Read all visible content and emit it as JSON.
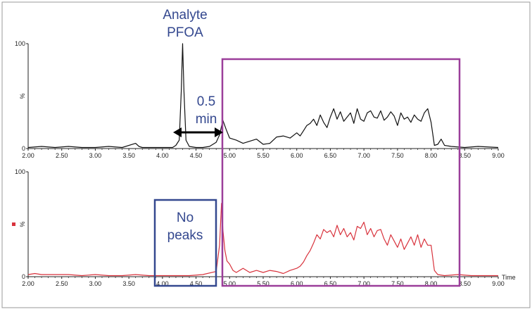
{
  "annotations": {
    "analyte_line1": "Analyte",
    "analyte_line2": "PFOA",
    "gap_line1": "0.5",
    "gap_line2": "min",
    "no_peaks_line1": "No",
    "no_peaks_line2": "peaks"
  },
  "colors": {
    "top_trace": "#111111",
    "bottom_trace": "#d8323c",
    "highlight_box": "#9b3e9a",
    "no_peaks_box": "#34488f",
    "annotation_text": "#34488f",
    "arrow": "#000000"
  },
  "chart_data": [
    {
      "type": "line",
      "panel": "top",
      "x_axis_label": "",
      "ylabel": "%",
      "ylim": [
        0,
        100
      ],
      "xlim": [
        2.0,
        9.0
      ],
      "x_tick_labels": [
        "2.00",
        "2.50",
        "3.00",
        "3.50",
        "4.00",
        "4.50",
        "5.00",
        "5.50",
        "6.00",
        "6.50",
        "7.00",
        "7.50",
        "8.00",
        "8.50",
        "9.00"
      ],
      "y_tick_labels": [
        "0",
        "100"
      ],
      "series": [
        {
          "color": "#111111",
          "x": [
            2.0,
            2.2,
            2.4,
            2.6,
            2.8,
            3.0,
            3.2,
            3.4,
            3.6,
            3.65,
            3.7,
            3.8,
            4.0,
            4.15,
            4.2,
            4.25,
            4.28,
            4.3,
            4.32,
            4.35,
            4.4,
            4.5,
            4.6,
            4.7,
            4.8,
            4.85,
            4.9,
            4.95,
            5.0,
            5.1,
            5.2,
            5.3,
            5.4,
            5.5,
            5.6,
            5.7,
            5.8,
            5.9,
            6.0,
            6.05,
            6.1,
            6.15,
            6.2,
            6.25,
            6.3,
            6.35,
            6.4,
            6.45,
            6.5,
            6.55,
            6.6,
            6.65,
            6.7,
            6.75,
            6.8,
            6.85,
            6.9,
            6.95,
            7.0,
            7.05,
            7.1,
            7.15,
            7.2,
            7.25,
            7.3,
            7.35,
            7.4,
            7.45,
            7.5,
            7.55,
            7.6,
            7.65,
            7.7,
            7.75,
            7.8,
            7.85,
            7.9,
            7.95,
            8.0,
            8.05,
            8.1,
            8.15,
            8.2,
            8.3,
            8.5,
            8.7,
            9.0
          ],
          "y": [
            1,
            2,
            1,
            2,
            1,
            1,
            2,
            1,
            5,
            2,
            1,
            1,
            1,
            1,
            3,
            8,
            55,
            100,
            55,
            8,
            2,
            1,
            1,
            2,
            6,
            13,
            27,
            18,
            10,
            8,
            5,
            7,
            9,
            4,
            5,
            11,
            12,
            10,
            15,
            12,
            17,
            22,
            24,
            28,
            22,
            32,
            25,
            20,
            30,
            38,
            28,
            35,
            26,
            30,
            34,
            24,
            38,
            28,
            26,
            34,
            36,
            30,
            29,
            36,
            27,
            30,
            35,
            31,
            22,
            34,
            28,
            30,
            25,
            32,
            28,
            26,
            34,
            38,
            25,
            3,
            4,
            9,
            3,
            2,
            1,
            2,
            1
          ]
        }
      ]
    },
    {
      "type": "line",
      "panel": "bottom",
      "x_axis_label": "Time",
      "ylabel": "%",
      "ylim": [
        0,
        100
      ],
      "xlim": [
        2.0,
        9.0
      ],
      "x_tick_labels": [
        "2.00",
        "2.50",
        "3.00",
        "3.50",
        "4.00",
        "4.50",
        "5.00",
        "5.50",
        "6.00",
        "6.50",
        "7.00",
        "7.50",
        "8.00",
        "8.50",
        "9.00"
      ],
      "y_tick_labels": [
        "0",
        "100"
      ],
      "series": [
        {
          "color": "#d8323c",
          "x": [
            2.0,
            2.1,
            2.2,
            2.4,
            2.6,
            2.8,
            3.0,
            3.2,
            3.4,
            3.6,
            3.8,
            4.0,
            4.2,
            4.4,
            4.6,
            4.8,
            4.85,
            4.88,
            4.9,
            4.93,
            4.96,
            5.0,
            5.05,
            5.1,
            5.2,
            5.3,
            5.4,
            5.5,
            5.6,
            5.7,
            5.8,
            5.9,
            6.0,
            6.05,
            6.1,
            6.15,
            6.2,
            6.25,
            6.3,
            6.35,
            6.4,
            6.45,
            6.5,
            6.55,
            6.6,
            6.65,
            6.7,
            6.75,
            6.8,
            6.85,
            6.9,
            6.95,
            7.0,
            7.05,
            7.1,
            7.15,
            7.2,
            7.25,
            7.3,
            7.35,
            7.4,
            7.45,
            7.5,
            7.55,
            7.6,
            7.65,
            7.7,
            7.75,
            7.8,
            7.85,
            7.9,
            7.95,
            8.0,
            8.05,
            8.1,
            8.2,
            8.4,
            8.6,
            8.8,
            9.0
          ],
          "y": [
            2,
            3,
            2,
            2,
            2,
            1,
            2,
            1,
            1,
            2,
            1,
            1,
            1,
            1,
            2,
            5,
            30,
            70,
            45,
            25,
            15,
            12,
            6,
            4,
            8,
            4,
            6,
            4,
            6,
            5,
            3,
            6,
            8,
            10,
            14,
            20,
            25,
            32,
            40,
            36,
            45,
            42,
            44,
            38,
            49,
            40,
            46,
            38,
            42,
            35,
            48,
            46,
            52,
            40,
            46,
            38,
            44,
            45,
            36,
            30,
            40,
            34,
            28,
            36,
            26,
            32,
            38,
            30,
            40,
            28,
            36,
            30,
            30,
            6,
            2,
            1,
            2,
            1,
            1,
            1
          ]
        }
      ]
    }
  ]
}
